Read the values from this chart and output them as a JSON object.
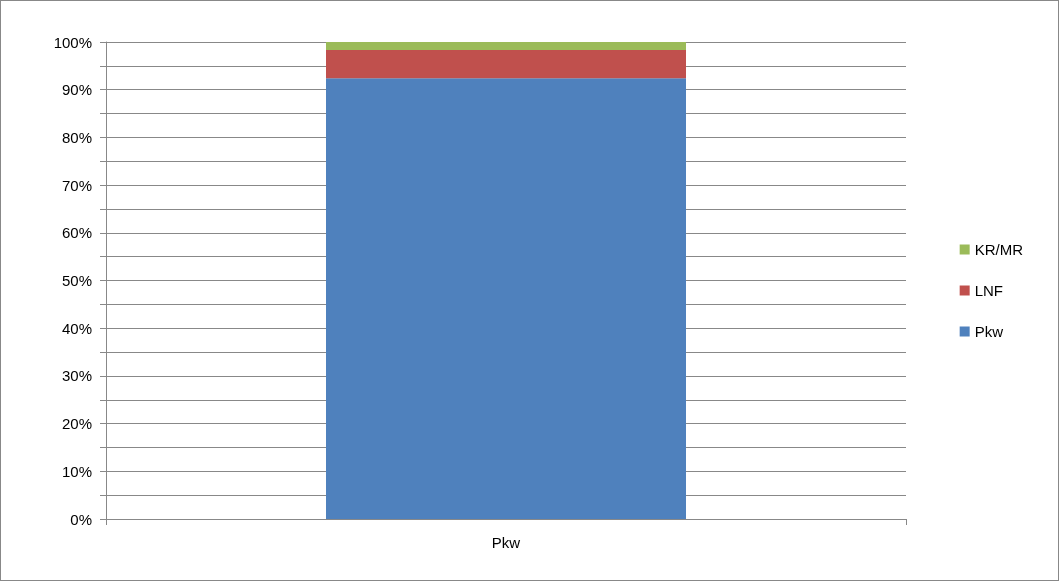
{
  "chart_data": {
    "type": "bar",
    "stacked": true,
    "categories": [
      "Pkw"
    ],
    "series": [
      {
        "name": "Pkw",
        "color": "#4f81bd",
        "values": [
          92.4
        ]
      },
      {
        "name": "LNF",
        "color": "#c0504d",
        "values": [
          5.9
        ]
      },
      {
        "name": "KR/MR",
        "color": "#9bbb59",
        "values": [
          1.7
        ]
      }
    ],
    "ylim": [
      0,
      100
    ],
    "yticks": [
      {
        "value": 0,
        "label": "0%"
      },
      {
        "value": 10,
        "label": "10%"
      },
      {
        "value": 20,
        "label": "20%"
      },
      {
        "value": 30,
        "label": "30%"
      },
      {
        "value": 40,
        "label": "40%"
      },
      {
        "value": 50,
        "label": "50%"
      },
      {
        "value": 60,
        "label": "60%"
      },
      {
        "value": 70,
        "label": "70%"
      },
      {
        "value": 80,
        "label": "80%"
      },
      {
        "value": 90,
        "label": "90%"
      },
      {
        "value": 100,
        "label": "100%"
      }
    ],
    "grid": "y",
    "legend": "right"
  }
}
